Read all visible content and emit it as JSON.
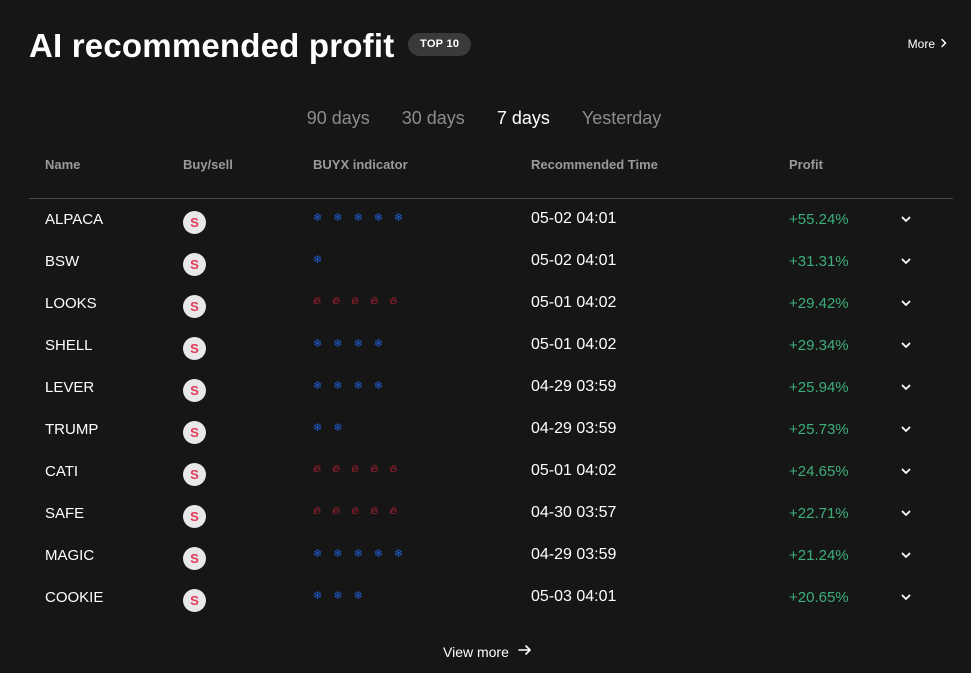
{
  "header": {
    "title": "AI recommended profit",
    "badge": "TOP 10",
    "more_label": "More"
  },
  "tabs": [
    {
      "label": "90 days",
      "active": false
    },
    {
      "label": "30 days",
      "active": false
    },
    {
      "label": "7 days",
      "active": true
    },
    {
      "label": "Yesterday",
      "active": false
    }
  ],
  "table": {
    "columns": [
      "Name",
      "Buy/sell",
      "BUYX indicator",
      "Recommended Time",
      "Profit"
    ],
    "rows": [
      {
        "name": "ALPACA",
        "side": "S",
        "indicator": {
          "icon": "snowflake-icon",
          "count": 5
        },
        "time": "05-02 04:01",
        "profit": "+55.24%"
      },
      {
        "name": "BSW",
        "side": "S",
        "indicator": {
          "icon": "snowflake-icon",
          "count": 1
        },
        "time": "05-02 04:01",
        "profit": "+31.31%"
      },
      {
        "name": "LOOKS",
        "side": "S",
        "indicator": {
          "icon": "fire-icon",
          "count": 5
        },
        "time": "05-01 04:02",
        "profit": "+29.42%"
      },
      {
        "name": "SHELL",
        "side": "S",
        "indicator": {
          "icon": "snowflake-icon",
          "count": 4
        },
        "time": "05-01 04:02",
        "profit": "+29.34%"
      },
      {
        "name": "LEVER",
        "side": "S",
        "indicator": {
          "icon": "snowflake-icon",
          "count": 4
        },
        "time": "04-29 03:59",
        "profit": "+25.94%"
      },
      {
        "name": "TRUMP",
        "side": "S",
        "indicator": {
          "icon": "snowflake-icon",
          "count": 2
        },
        "time": "04-29 03:59",
        "profit": "+25.73%"
      },
      {
        "name": "CATI",
        "side": "S",
        "indicator": {
          "icon": "fire-icon",
          "count": 5
        },
        "time": "05-01 04:02",
        "profit": "+24.65%"
      },
      {
        "name": "SAFE",
        "side": "S",
        "indicator": {
          "icon": "fire-icon",
          "count": 5
        },
        "time": "04-30 03:57",
        "profit": "+22.71%"
      },
      {
        "name": "MAGIC",
        "side": "S",
        "indicator": {
          "icon": "snowflake-icon",
          "count": 5
        },
        "time": "04-29 03:59",
        "profit": "+21.24%"
      },
      {
        "name": "COOKIE",
        "side": "S",
        "indicator": {
          "icon": "snowflake-icon",
          "count": 3
        },
        "time": "05-03 04:01",
        "profit": "+20.65%"
      }
    ]
  },
  "footer": {
    "view_more_label": "View more"
  },
  "colors": {
    "background": "#161616",
    "profit": "#3dae7a",
    "sell": "#e23a58",
    "snowflake": "#1f5fd6",
    "fire": "#e0243b"
  }
}
